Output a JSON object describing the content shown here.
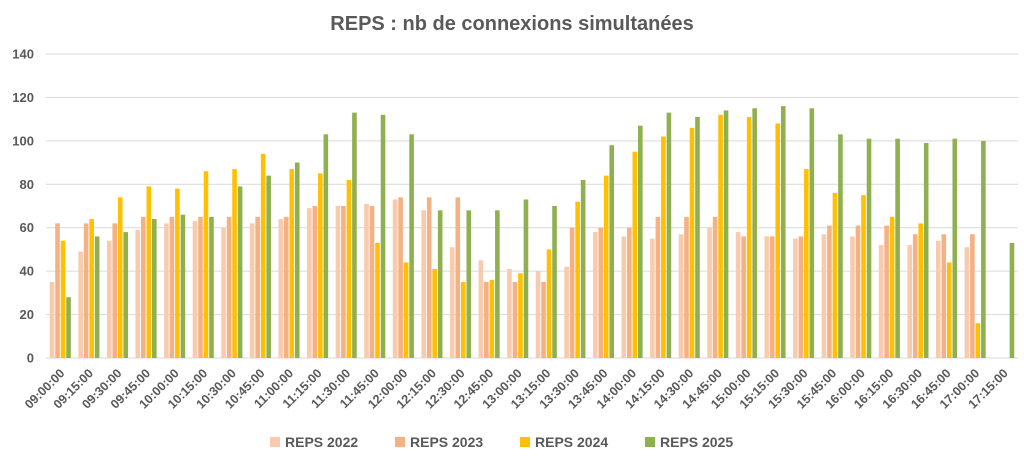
{
  "chart_data": {
    "type": "bar",
    "title": "REPS : nb de connexions simultanées",
    "xlabel": "",
    "ylabel": "",
    "ylim": [
      0,
      140
    ],
    "yticks": [
      "0",
      "20",
      "40",
      "60",
      "80",
      "100",
      "120",
      "140"
    ],
    "grid": true,
    "legend_position": "bottom",
    "categories": [
      "09:00:00",
      "09:15:00",
      "09:30:00",
      "09:45:00",
      "10:00:00",
      "10:15:00",
      "10:30:00",
      "10:45:00",
      "11:00:00",
      "11:15:00",
      "11:30:00",
      "11:45:00",
      "12:00:00",
      "12:15:00",
      "12:30:00",
      "12:45:00",
      "13:00:00",
      "13:15:00",
      "13:30:00",
      "13:45:00",
      "14:00:00",
      "14:15:00",
      "14:30:00",
      "14:45:00",
      "15:00:00",
      "15:15:00",
      "15:30:00",
      "15:45:00",
      "16:00:00",
      "16:15:00",
      "16:30:00",
      "16:45:00",
      "17:00:00",
      "17:15:00"
    ],
    "series": [
      {
        "name": "REPS 2022",
        "color": "#f8cbad",
        "values": [
          35,
          49,
          54,
          59,
          62,
          63,
          60,
          62,
          64,
          69,
          70,
          71,
          73,
          68,
          51,
          45,
          41,
          40,
          42,
          58,
          56,
          55,
          57,
          60,
          58,
          56,
          55,
          57,
          56,
          52,
          52,
          54,
          51,
          null
        ]
      },
      {
        "name": "REPS 2023",
        "color": "#f4b183",
        "values": [
          62,
          62,
          62,
          65,
          65,
          65,
          65,
          65,
          65,
          70,
          70,
          70,
          74,
          74,
          74,
          35,
          35,
          35,
          60,
          60,
          60,
          65,
          65,
          65,
          56,
          56,
          56,
          61,
          61,
          61,
          57,
          57,
          57,
          null
        ]
      },
      {
        "name": "REPS 2024",
        "color": "#ffc000",
        "values": [
          54,
          64,
          74,
          79,
          78,
          86,
          87,
          94,
          87,
          85,
          82,
          53,
          44,
          41,
          35,
          36,
          39,
          50,
          72,
          84,
          95,
          102,
          106,
          112,
          111,
          108,
          87,
          76,
          75,
          65,
          62,
          44,
          16,
          null
        ]
      },
      {
        "name": "REPS 2025",
        "color": "#8fb050",
        "values": [
          28,
          56,
          58,
          64,
          66,
          65,
          79,
          84,
          90,
          103,
          113,
          112,
          103,
          68,
          68,
          68,
          73,
          70,
          82,
          98,
          107,
          113,
          111,
          114,
          115,
          116,
          115,
          103,
          101,
          101,
          99,
          101,
          100,
          53
        ]
      }
    ]
  }
}
